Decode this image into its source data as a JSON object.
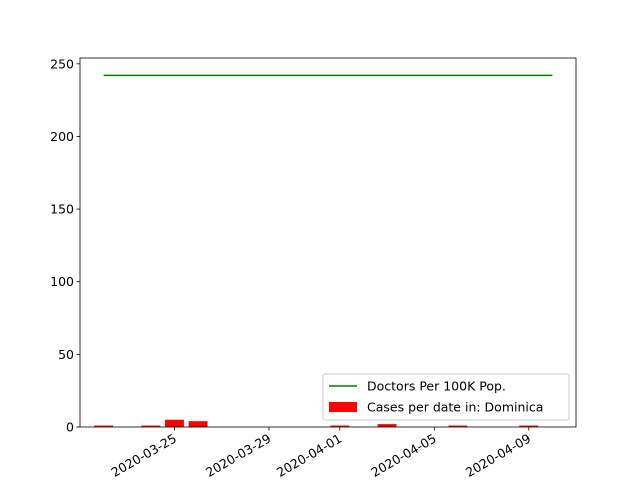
{
  "chart_data": {
    "type": "bar",
    "title": "",
    "xlabel": "",
    "ylabel": "",
    "x_axis": {
      "type": "date",
      "range": [
        "2020-03-21",
        "2020-04-11"
      ],
      "ticks": [
        "2020-03-25",
        "2020-03-29",
        "2020-04-01",
        "2020-04-05",
        "2020-04-09"
      ]
    },
    "y_axis": {
      "range": [
        0,
        254
      ],
      "ticks": [
        0,
        50,
        100,
        150,
        200,
        250
      ]
    },
    "grid": false,
    "legend_position": "lower-right",
    "series": [
      {
        "name": "Doctors Per 100K Pop.",
        "type": "line",
        "color": "#008000",
        "points": [
          {
            "x": "2020-03-22",
            "y": 242
          },
          {
            "x": "2020-04-10",
            "y": 242
          }
        ]
      },
      {
        "name": "Cases per date in: Dominica",
        "type": "bar",
        "color": "#ff0000",
        "points": [
          {
            "x": "2020-03-22",
            "y": 1
          },
          {
            "x": "2020-03-24",
            "y": 1
          },
          {
            "x": "2020-03-25",
            "y": 5
          },
          {
            "x": "2020-03-26",
            "y": 4
          },
          {
            "x": "2020-04-01",
            "y": 1
          },
          {
            "x": "2020-04-03",
            "y": 2
          },
          {
            "x": "2020-04-06",
            "y": 1
          },
          {
            "x": "2020-04-09",
            "y": 1
          }
        ]
      }
    ]
  }
}
